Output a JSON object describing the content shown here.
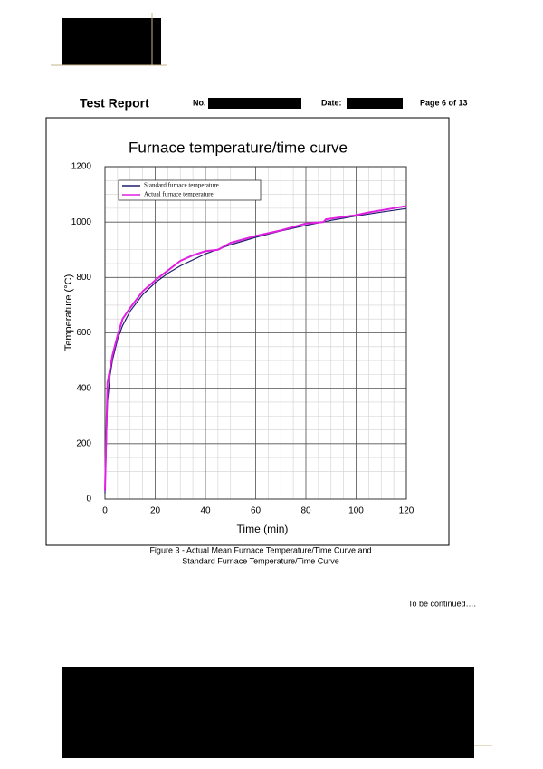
{
  "header": {
    "title": "Test Report",
    "no_label": "No.",
    "date_label": "Date:",
    "page": "Page 6 of 13"
  },
  "chart_data": {
    "type": "line",
    "title": "Furnace temperature/time curve",
    "x_label": "Time (min)",
    "y_label": "Temperature (°C)",
    "xlim": [
      0,
      120
    ],
    "xticks": [
      0,
      20,
      40,
      60,
      80,
      100,
      120
    ],
    "ylim": [
      0,
      1200
    ],
    "yticks": [
      0,
      200,
      400,
      600,
      800,
      1000,
      1200
    ],
    "grid": true,
    "xminor": [
      0,
      5,
      10,
      15,
      20,
      25,
      30,
      35,
      40,
      45,
      50,
      55,
      60,
      65,
      70,
      75,
      80,
      85,
      90,
      95,
      100,
      105,
      110,
      115,
      120
    ],
    "yminor": [
      0,
      50,
      100,
      150,
      200,
      250,
      300,
      350,
      400,
      450,
      500,
      550,
      600,
      650,
      700,
      750,
      800,
      850,
      900,
      950,
      1000,
      1050,
      1100,
      1150,
      1200
    ],
    "legend": "upper left",
    "series": [
      {
        "name": "Standard furnace temperature",
        "color": "#1f1f6e",
        "x": [
          0,
          1,
          2,
          3,
          5,
          7,
          10,
          15,
          20,
          25,
          30,
          40,
          50,
          60,
          70,
          80,
          90,
          100,
          110,
          120
        ],
        "values": [
          20,
          349,
          445,
          502,
          576,
          626,
          678,
          738,
          781,
          815,
          842,
          885,
          918,
          945,
          968,
          988,
          1006,
          1022,
          1036,
          1049
        ]
      },
      {
        "name": "Actual furnace temperature",
        "color": "#e020e0",
        "x": [
          0,
          1,
          2,
          3,
          5,
          7,
          10,
          15,
          20,
          25,
          30,
          35,
          40,
          45,
          50,
          60,
          70,
          80,
          87,
          88,
          100,
          105,
          120
        ],
        "values": [
          30,
          420,
          470,
          520,
          590,
          650,
          690,
          750,
          790,
          825,
          860,
          880,
          895,
          900,
          925,
          950,
          970,
          995,
          1000,
          1010,
          1025,
          1035,
          1058
        ]
      }
    ]
  },
  "caption": [
    "Figure 3 - Actual Mean Furnace Temperature/Time Curve and",
    "Standard Furnace Temperature/Time Curve"
  ],
  "footer_note": "To be continued…."
}
